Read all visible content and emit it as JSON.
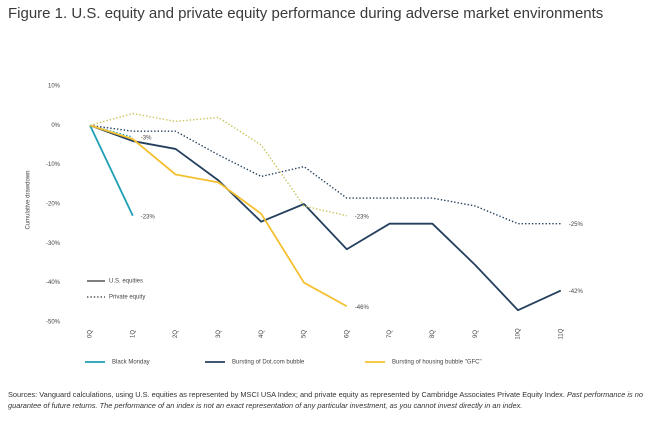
{
  "chart_data": {
    "type": "line",
    "title": "Figure 1. U.S. equity and private equity performance during adverse market environments",
    "y_label": "Cumulative drawdown",
    "categories": [
      "0Q",
      "1Q",
      "2Q",
      "3Q",
      "4Q",
      "5Q",
      "6Q",
      "7Q",
      "8Q",
      "9Q",
      "10Q",
      "11Q"
    ],
    "ylim": [
      -50,
      10
    ],
    "yticks": [
      {
        "value": 10,
        "label": "10%"
      },
      {
        "value": 0,
        "label": "0%"
      },
      {
        "value": -10,
        "label": "-10%"
      },
      {
        "value": -20,
        "label": "-20%"
      },
      {
        "value": -30,
        "label": "-30%"
      },
      {
        "value": -40,
        "label": "-40%"
      },
      {
        "value": -50,
        "label": "-50%"
      }
    ],
    "grid": false,
    "legend_styles": [
      {
        "label": "U.S. equities",
        "dotted": false
      },
      {
        "label": "Private equity",
        "dotted": true
      }
    ],
    "legend_episodes": [
      {
        "label": "Black Monday",
        "color": "#1fa0b4"
      },
      {
        "label": "Bursting of Dot.com bubble",
        "color": "#24405e"
      },
      {
        "label": "Bursting of housing bubble \"GFC\"",
        "color": "#f4c02f"
      }
    ],
    "series": [
      {
        "episode": 0,
        "style": 0,
        "color": "#1fa0b4",
        "values": [
          0,
          -23,
          null,
          null,
          null,
          null,
          null,
          null,
          null,
          null,
          null,
          null
        ],
        "value_labels": [
          null,
          "-23%",
          null,
          null,
          null,
          null,
          null,
          null,
          null,
          null,
          null,
          null
        ]
      },
      {
        "episode": 0,
        "style": 1,
        "color": "#1fa0b4",
        "values": [
          0,
          -3,
          null,
          null,
          null,
          null,
          null,
          null,
          null,
          null,
          null,
          null
        ],
        "value_labels": [
          null,
          "-3%",
          null,
          null,
          null,
          null,
          null,
          null,
          null,
          null,
          null,
          null
        ]
      },
      {
        "episode": 1,
        "style": 0,
        "color": "#24405e",
        "values": [
          0,
          -4,
          -6,
          -14,
          -24.5,
          -20,
          -31.5,
          -25,
          -25,
          -35.5,
          -47,
          -42
        ],
        "value_labels": [
          null,
          null,
          null,
          null,
          null,
          null,
          null,
          null,
          null,
          null,
          null,
          "-42%"
        ]
      },
      {
        "episode": 1,
        "style": 1,
        "color": "#24405e",
        "values": [
          0,
          -1.5,
          -1.5,
          -7.5,
          -13,
          -10.5,
          -18.5,
          -18.5,
          -18.5,
          -20.5,
          -25,
          -25
        ],
        "value_labels": [
          null,
          null,
          null,
          null,
          null,
          null,
          null,
          null,
          null,
          null,
          null,
          "-25%"
        ]
      },
      {
        "episode": 2,
        "style": 0,
        "color": "#f4c02f",
        "values": [
          0,
          -3.5,
          -12.5,
          -14.5,
          -22.5,
          -40,
          -46,
          null,
          null,
          null,
          null,
          null
        ],
        "value_labels": [
          null,
          null,
          null,
          null,
          null,
          null,
          "-46%",
          null,
          null,
          null,
          null,
          null
        ]
      },
      {
        "episode": 2,
        "style": 1,
        "color": "#c8c35a",
        "values": [
          0,
          3,
          1,
          2,
          -5,
          -20.5,
          -23,
          null,
          null,
          null,
          null,
          null
        ],
        "value_labels": [
          null,
          null,
          null,
          null,
          null,
          null,
          "-23%",
          null,
          null,
          null,
          null,
          null
        ]
      }
    ]
  },
  "footnote": {
    "source": "Sources: Vanguard calculations, using U.S. equities as represented by MSCI USA Index; and private equity as represented by Cambridge Associates Private Equity Index.",
    "disclaimer": "Past performance is no guarantee of future returns. The performance of an index is not an exact representation of any particular investment, as you cannot invest directly in an index."
  }
}
